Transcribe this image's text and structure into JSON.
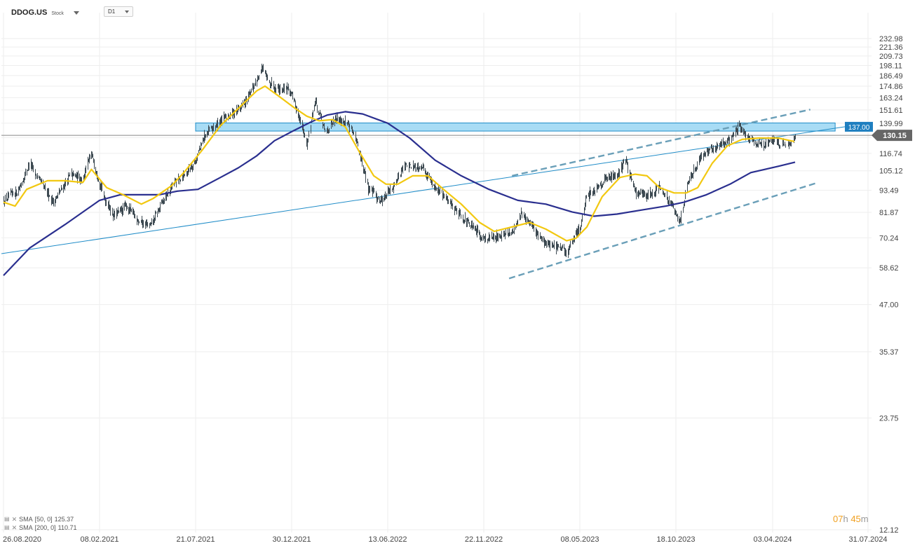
{
  "header": {
    "symbol": "DDOG.US",
    "symbol_type": "Stock",
    "timeframe": "D1"
  },
  "indicators": [
    {
      "label": "SMA",
      "params": "[50, 0]",
      "value": "125.37",
      "color": "#f2c811"
    },
    {
      "label": "SMA",
      "params": "[200, 0]",
      "value": "110.71",
      "color": "#2a2f8f"
    }
  ],
  "countdown": {
    "hours": "07",
    "hours_unit": "h",
    "minutes": "45",
    "minutes_unit": "m"
  },
  "colors": {
    "candles": "#3d4a52",
    "sma50": "#f2c811",
    "sma200": "#2a2f8f",
    "zone_fill": "#a8dcf5",
    "zone_border": "#1f8cc8",
    "channel": "#6a9fb8",
    "price_tag": "#666666",
    "level_tag": "#1f7fc0",
    "grid": "#eeeeee"
  },
  "chart_data": {
    "type": "candlestick",
    "y_scale": "log",
    "ylim": [
      12.12,
      232.98
    ],
    "y_ticks": [
      "232.98",
      "221.36",
      "209.73",
      "198.11",
      "186.49",
      "174.86",
      "163.24",
      "151.61",
      "139.99",
      "128.36",
      "116.74",
      "105.12",
      "93.49",
      "81.87",
      "70.24",
      "58.62",
      "47.00",
      "35.37",
      "23.75",
      "12.12"
    ],
    "x_ticks": [
      "26.08.2020",
      "08.02.2021",
      "21.07.2021",
      "30.12.2021",
      "13.06.2022",
      "22.11.2022",
      "08.05.2023",
      "18.10.2023",
      "03.04.2024",
      "31.07.2024"
    ],
    "last_price": "130.15",
    "resistance_level": "137.00",
    "price_path": [
      [
        "2020-08-26",
        88
      ],
      [
        "2020-09-20",
        93
      ],
      [
        "2020-10-10",
        110
      ],
      [
        "2020-10-25",
        100
      ],
      [
        "2020-11-20",
        87
      ],
      [
        "2020-12-20",
        103
      ],
      [
        "2021-01-10",
        100
      ],
      [
        "2021-01-25",
        116
      ],
      [
        "2021-02-15",
        90
      ],
      [
        "2021-03-05",
        80
      ],
      [
        "2021-03-25",
        85
      ],
      [
        "2021-04-15",
        78
      ],
      [
        "2021-05-05",
        75
      ],
      [
        "2021-05-25",
        87
      ],
      [
        "2021-06-15",
        98
      ],
      [
        "2021-07-05",
        104
      ],
      [
        "2021-07-21",
        112
      ],
      [
        "2021-08-05",
        130
      ],
      [
        "2021-09-01",
        142
      ],
      [
        "2021-09-25",
        150
      ],
      [
        "2021-10-15",
        160
      ],
      [
        "2021-11-10",
        195
      ],
      [
        "2021-11-20",
        180
      ],
      [
        "2021-12-10",
        172
      ],
      [
        "2021-12-25",
        173
      ],
      [
        "2022-01-10",
        148
      ],
      [
        "2022-01-25",
        123
      ],
      [
        "2022-02-08",
        160
      ],
      [
        "2022-02-25",
        133
      ],
      [
        "2022-03-20",
        145
      ],
      [
        "2022-04-10",
        138
      ],
      [
        "2022-04-20",
        125
      ],
      [
        "2022-05-10",
        95
      ],
      [
        "2022-06-01",
        88
      ],
      [
        "2022-06-20",
        95
      ],
      [
        "2022-07-10",
        108
      ],
      [
        "2022-08-10",
        108
      ],
      [
        "2022-09-01",
        95
      ],
      [
        "2022-10-01",
        85
      ],
      [
        "2022-11-01",
        75
      ],
      [
        "2022-11-22",
        70
      ],
      [
        "2022-12-15",
        71
      ],
      [
        "2023-01-10",
        72
      ],
      [
        "2023-01-25",
        82
      ],
      [
        "2023-02-10",
        76
      ],
      [
        "2023-03-10",
        68
      ],
      [
        "2023-04-01",
        66
      ],
      [
        "2023-04-15",
        64
      ],
      [
        "2023-05-08",
        75
      ],
      [
        "2023-05-20",
        90
      ],
      [
        "2023-06-10",
        97
      ],
      [
        "2023-06-20",
        100
      ],
      [
        "2023-07-10",
        103
      ],
      [
        "2023-07-25",
        112
      ],
      [
        "2023-08-10",
        92
      ],
      [
        "2023-09-01",
        91
      ],
      [
        "2023-09-20",
        96
      ],
      [
        "2023-10-05",
        88
      ],
      [
        "2023-10-25",
        78
      ],
      [
        "2023-11-10",
        100
      ],
      [
        "2023-11-30",
        113
      ],
      [
        "2023-12-15",
        120
      ],
      [
        "2024-01-05",
        123
      ],
      [
        "2024-01-20",
        127
      ],
      [
        "2024-02-05",
        137
      ],
      [
        "2024-02-20",
        128
      ],
      [
        "2024-03-05",
        123
      ],
      [
        "2024-03-20",
        124
      ],
      [
        "2024-04-05",
        126
      ],
      [
        "2024-04-20",
        122
      ],
      [
        "2024-05-01",
        130.15
      ]
    ],
    "sma50_path": [
      [
        "2020-08-26",
        87
      ],
      [
        "2020-09-15",
        85
      ],
      [
        "2020-10-05",
        94
      ],
      [
        "2020-11-10",
        99
      ],
      [
        "2020-12-10",
        99
      ],
      [
        "2021-01-10",
        98
      ],
      [
        "2021-01-25",
        106
      ],
      [
        "2021-02-20",
        95
      ],
      [
        "2021-03-20",
        91
      ],
      [
        "2021-04-20",
        86
      ],
      [
        "2021-05-10",
        89
      ],
      [
        "2021-06-10",
        96
      ],
      [
        "2021-07-01",
        104
      ],
      [
        "2021-08-01",
        119
      ],
      [
        "2021-09-01",
        138
      ],
      [
        "2021-10-01",
        153
      ],
      [
        "2021-11-01",
        170
      ],
      [
        "2021-11-15",
        175
      ],
      [
        "2021-12-10",
        164
      ],
      [
        "2022-01-05",
        153
      ],
      [
        "2022-01-25",
        146
      ],
      [
        "2022-02-15",
        142
      ],
      [
        "2022-03-10",
        143
      ],
      [
        "2022-04-01",
        137
      ],
      [
        "2022-04-25",
        118
      ],
      [
        "2022-05-20",
        102
      ],
      [
        "2022-06-10",
        97
      ],
      [
        "2022-06-30",
        97
      ],
      [
        "2022-07-25",
        102
      ],
      [
        "2022-08-20",
        102
      ],
      [
        "2022-09-15",
        94
      ],
      [
        "2022-10-15",
        86
      ],
      [
        "2022-11-15",
        77
      ],
      [
        "2022-12-10",
        73
      ],
      [
        "2023-01-10",
        75
      ],
      [
        "2023-02-10",
        77
      ],
      [
        "2023-03-10",
        74
      ],
      [
        "2023-04-15",
        69
      ],
      [
        "2023-05-01",
        70
      ],
      [
        "2023-05-20",
        75
      ],
      [
        "2023-06-15",
        90
      ],
      [
        "2023-07-15",
        101
      ],
      [
        "2023-08-10",
        103
      ],
      [
        "2023-08-30",
        102
      ],
      [
        "2023-09-20",
        95
      ],
      [
        "2023-10-15",
        92
      ],
      [
        "2023-11-05",
        92
      ],
      [
        "2023-11-25",
        95
      ],
      [
        "2023-12-20",
        110
      ],
      [
        "2024-01-15",
        122
      ],
      [
        "2024-02-10",
        127
      ],
      [
        "2024-03-10",
        128
      ],
      [
        "2024-04-10",
        128
      ],
      [
        "2024-04-30",
        125.37
      ]
    ],
    "sma200_path": [
      [
        "2020-08-26",
        56
      ],
      [
        "2020-10-10",
        66
      ],
      [
        "2020-12-10",
        76
      ],
      [
        "2021-02-08",
        88
      ],
      [
        "2021-03-15",
        91
      ],
      [
        "2021-04-15",
        91
      ],
      [
        "2021-05-20",
        91
      ],
      [
        "2021-06-20",
        93
      ],
      [
        "2021-07-25",
        94
      ],
      [
        "2021-09-01",
        101
      ],
      [
        "2021-10-01",
        107
      ],
      [
        "2021-11-01",
        115
      ],
      [
        "2021-12-01",
        126
      ],
      [
        "2021-12-30",
        133
      ],
      [
        "2022-02-01",
        141
      ],
      [
        "2022-03-01",
        147
      ],
      [
        "2022-04-01",
        150
      ],
      [
        "2022-05-01",
        148
      ],
      [
        "2022-06-13",
        140
      ],
      [
        "2022-07-20",
        128
      ],
      [
        "2022-09-01",
        112
      ],
      [
        "2022-10-15",
        102
      ],
      [
        "2022-12-01",
        94
      ],
      [
        "2023-01-20",
        88
      ],
      [
        "2023-03-10",
        86
      ],
      [
        "2023-04-25",
        82
      ],
      [
        "2023-06-01",
        80
      ],
      [
        "2023-07-10",
        81
      ],
      [
        "2023-08-20",
        83
      ],
      [
        "2023-10-01",
        85
      ],
      [
        "2023-11-01",
        87
      ],
      [
        "2023-12-10",
        91
      ],
      [
        "2024-01-20",
        97
      ],
      [
        "2024-02-25",
        104
      ],
      [
        "2024-04-10",
        108
      ],
      [
        "2024-05-01",
        110.71
      ]
    ],
    "channel_upper": [
      [
        "2023-01-10",
        102
      ],
      [
        "2024-05-20",
        152
      ]
    ],
    "channel_lower": [
      [
        "2023-01-05",
        55
      ],
      [
        "2024-05-30",
        98
      ]
    ],
    "zone": {
      "from": "2021-07-21",
      "to": "2024-06-20",
      "low": 133.5,
      "high": 140.2
    }
  }
}
